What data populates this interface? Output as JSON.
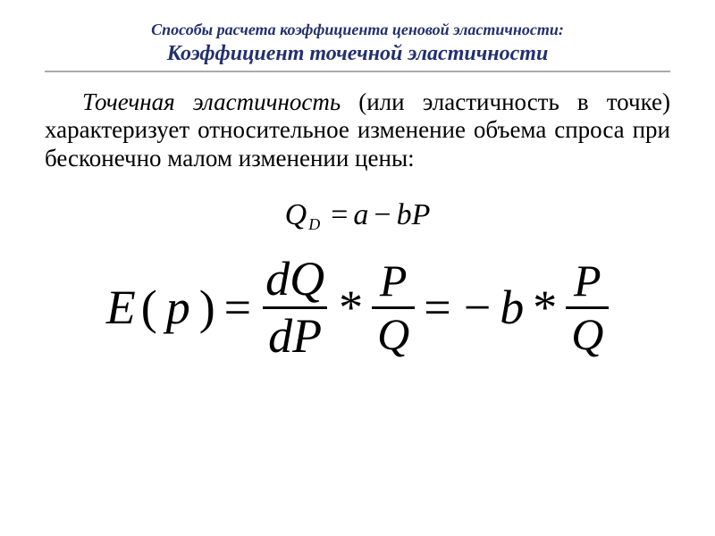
{
  "colors": {
    "title": "#22306f",
    "text": "#000000",
    "rule": "#aaaaaa",
    "background": "#ffffff"
  },
  "typography": {
    "title_sup_fontsize": 18,
    "title_main_fontsize": 24,
    "body_fontsize": 27,
    "formula1_fontsize": 34,
    "formula2_fontsize": 54,
    "font_family": "Times New Roman"
  },
  "title": {
    "sup": "Способы расчета коэффициента ценовой эластичности:",
    "main": "Коэффициент точечной эластичности"
  },
  "body": {
    "lead": "Точечная эластичность",
    "rest": " (или эластичность в точке) характеризует относительное изменение объема спроса при бесконечно малом изменении цены:"
  },
  "formula1": {
    "lhs_var": "Q",
    "lhs_sub": "D",
    "eq": "=",
    "a": "a",
    "minus": "−",
    "b": "b",
    "P": "P"
  },
  "formula2": {
    "E": "E",
    "lpar": "(",
    "p": "p",
    "rpar": ")",
    "eq1": "=",
    "frac1_num": "dQ",
    "frac1_den": "dP",
    "star1": "*",
    "frac2_num": "P",
    "frac2_den": "Q",
    "eq2": "=",
    "neg": "−",
    "b": "b",
    "star2": "*",
    "frac3_num": "P",
    "frac3_den": "Q"
  }
}
